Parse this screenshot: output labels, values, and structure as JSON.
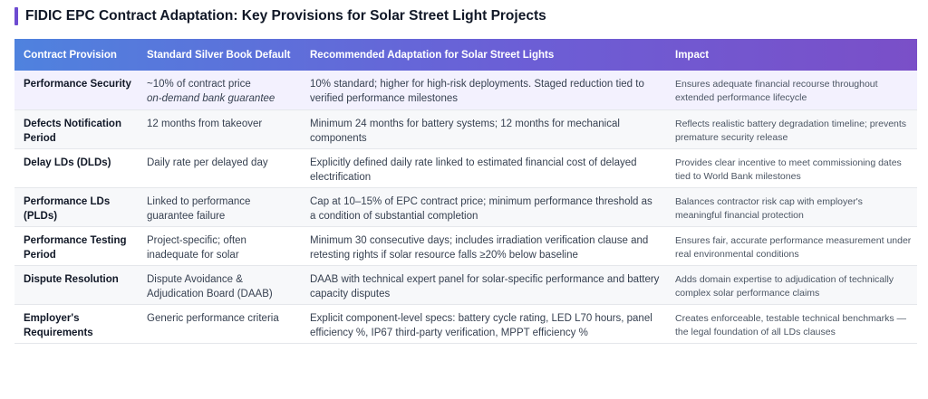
{
  "title": "FIDIC EPC Contract Adaptation: Key Provisions for Solar Street Light Projects",
  "headers": [
    "Contract Provision",
    "Standard Silver Book Default",
    "Recommended Adaptation for Solar Street Lights",
    "Impact"
  ],
  "rows": [
    {
      "provision": "Performance Security",
      "standard": "~10% of contract price",
      "standard_sub": "on-demand bank guarantee",
      "recommended": "10% standard; higher for high-risk deployments. Staged reduction tied to verified performance milestones",
      "impact": "Ensures adequate financial recourse throughout extended performance lifecycle"
    },
    {
      "provision": "Defects Notification Period",
      "standard": "12 months from takeover",
      "recommended": "Minimum 24 months for battery systems; 12 months for mechanical components",
      "impact": "Reflects realistic battery degradation timeline; prevents premature security release"
    },
    {
      "provision": "Delay LDs (DLDs)",
      "standard": "Daily rate per delayed day",
      "recommended": "Explicitly defined daily rate linked to estimated financial cost of delayed electrification",
      "impact": "Provides clear incentive to meet commissioning dates tied to World Bank milestones"
    },
    {
      "provision": "Performance LDs (PLDs)",
      "standard": "Linked to performance guarantee failure",
      "recommended": "Cap at 10–15% of EPC contract price; minimum performance threshold as a condition of substantial completion",
      "impact": "Balances contractor risk cap with employer's meaningful financial protection"
    },
    {
      "provision": "Performance Testing Period",
      "standard": "Project-specific; often inadequate for solar",
      "recommended": "Minimum 30 consecutive days; includes irradiation verification clause and retesting rights if solar resource falls ≥20% below baseline",
      "impact": "Ensures fair, accurate performance measurement under real environmental conditions"
    },
    {
      "provision": "Dispute Resolution",
      "standard": "Dispute Avoidance & Adjudication Board (DAAB)",
      "recommended": "DAAB with technical expert panel for solar-specific performance and battery capacity disputes",
      "impact": "Adds domain expertise to adjudication of technically complex solar performance claims"
    },
    {
      "provision": "Employer's Requirements",
      "standard": "Generic performance criteria",
      "recommended": "Explicit component-level specs: battery cycle rating, LED L70 hours, panel efficiency %, IP67 third-party verification, MPPT efficiency %",
      "impact": "Creates enforceable, testable technical benchmarks — the legal foundation of all LDs clauses"
    }
  ]
}
